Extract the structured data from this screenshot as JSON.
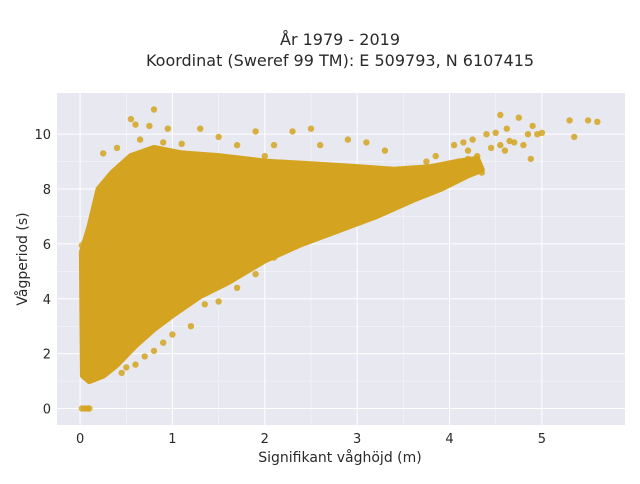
{
  "chart_data": {
    "type": "scatter",
    "title_line1": "År 1979 - 2019",
    "title_line2": "Koordinat (Sweref 99 TM): E 509793, N 6107415",
    "xlabel": "Signifikant våghöjd (m)",
    "ylabel": "Vågperiod (s)",
    "xlim": [
      -0.25,
      5.9
    ],
    "ylim": [
      -0.6,
      11.5
    ],
    "xticks": [
      0,
      1,
      2,
      3,
      4,
      5
    ],
    "yticks": [
      0,
      2,
      4,
      6,
      8,
      10
    ],
    "grid": true,
    "legend": "none",
    "colors": {
      "marker": "#d4a420",
      "plot_bg": "#e8e8f0",
      "grid": "#ffffff"
    },
    "series": [
      {
        "points": [
          [
            0.02,
            0
          ],
          [
            0.05,
            0
          ],
          [
            0.08,
            0
          ],
          [
            0.1,
            0
          ],
          [
            0.02,
            5.95
          ],
          [
            0.05,
            6.05
          ],
          [
            0.12,
            6.35
          ],
          [
            0.25,
            9.3
          ],
          [
            0.4,
            9.5
          ],
          [
            0.55,
            10.55
          ],
          [
            0.6,
            10.35
          ],
          [
            0.65,
            9.8
          ],
          [
            0.75,
            10.3
          ],
          [
            0.8,
            10.9
          ],
          [
            0.9,
            9.7
          ],
          [
            0.95,
            10.2
          ],
          [
            1.1,
            9.65
          ],
          [
            1.3,
            10.2
          ],
          [
            1.5,
            9.9
          ],
          [
            1.7,
            9.6
          ],
          [
            1.9,
            10.1
          ],
          [
            2.0,
            9.2
          ],
          [
            2.1,
            9.6
          ],
          [
            2.3,
            10.1
          ],
          [
            2.5,
            10.2
          ],
          [
            2.6,
            9.6
          ],
          [
            2.9,
            9.8
          ],
          [
            3.1,
            9.7
          ],
          [
            3.3,
            9.4
          ],
          [
            0.45,
            1.3
          ],
          [
            0.5,
            1.5
          ],
          [
            0.6,
            1.6
          ],
          [
            0.7,
            1.9
          ],
          [
            0.8,
            2.1
          ],
          [
            0.9,
            2.4
          ],
          [
            1.0,
            2.7
          ],
          [
            1.2,
            3.0
          ],
          [
            1.35,
            3.8
          ],
          [
            1.5,
            3.9
          ],
          [
            1.7,
            4.4
          ],
          [
            1.9,
            4.9
          ],
          [
            2.1,
            5.5
          ],
          [
            2.3,
            5.9
          ],
          [
            2.6,
            6.3
          ],
          [
            2.9,
            6.9
          ],
          [
            3.2,
            7.4
          ],
          [
            3.4,
            7.5
          ],
          [
            3.6,
            7.7
          ],
          [
            0.65,
            6.5
          ],
          [
            0.85,
            7.0
          ],
          [
            1.05,
            7.2
          ],
          [
            1.3,
            7.5
          ],
          [
            1.55,
            7.8
          ],
          [
            1.8,
            8.0
          ],
          [
            2.0,
            8.1
          ],
          [
            2.3,
            8.3
          ],
          [
            2.6,
            8.4
          ],
          [
            2.9,
            8.6
          ],
          [
            3.5,
            8.0
          ],
          [
            3.6,
            8.5
          ],
          [
            3.7,
            8.7
          ],
          [
            3.8,
            8.8
          ],
          [
            3.85,
            9.2
          ],
          [
            3.9,
            8.5
          ],
          [
            4.0,
            8.9
          ],
          [
            4.05,
            9.6
          ],
          [
            4.1,
            9.0
          ],
          [
            4.15,
            9.7
          ],
          [
            4.2,
            9.1
          ],
          [
            4.25,
            9.8
          ],
          [
            4.3,
            9.2
          ],
          [
            4.35,
            8.6
          ],
          [
            4.4,
            10.0
          ],
          [
            4.45,
            9.5
          ],
          [
            4.5,
            10.05
          ],
          [
            4.55,
            9.6
          ],
          [
            4.6,
            9.4
          ],
          [
            4.62,
            10.2
          ],
          [
            4.7,
            9.7
          ],
          [
            4.75,
            10.6
          ],
          [
            4.8,
            9.6
          ],
          [
            4.85,
            10.0
          ],
          [
            4.88,
            9.1
          ],
          [
            4.9,
            10.3
          ],
          [
            4.95,
            10.0
          ],
          [
            5.0,
            10.05
          ],
          [
            4.55,
            10.7
          ],
          [
            4.65,
            9.75
          ],
          [
            5.3,
            10.5
          ],
          [
            5.35,
            9.9
          ],
          [
            5.5,
            10.5
          ],
          [
            5.6,
            10.45
          ],
          [
            4.15,
            8.65
          ],
          [
            3.95,
            8.2
          ],
          [
            4.2,
            9.4
          ],
          [
            3.3,
            7.2
          ],
          [
            3.55,
            8.1
          ],
          [
            3.75,
            9.0
          ]
        ]
      }
    ]
  }
}
